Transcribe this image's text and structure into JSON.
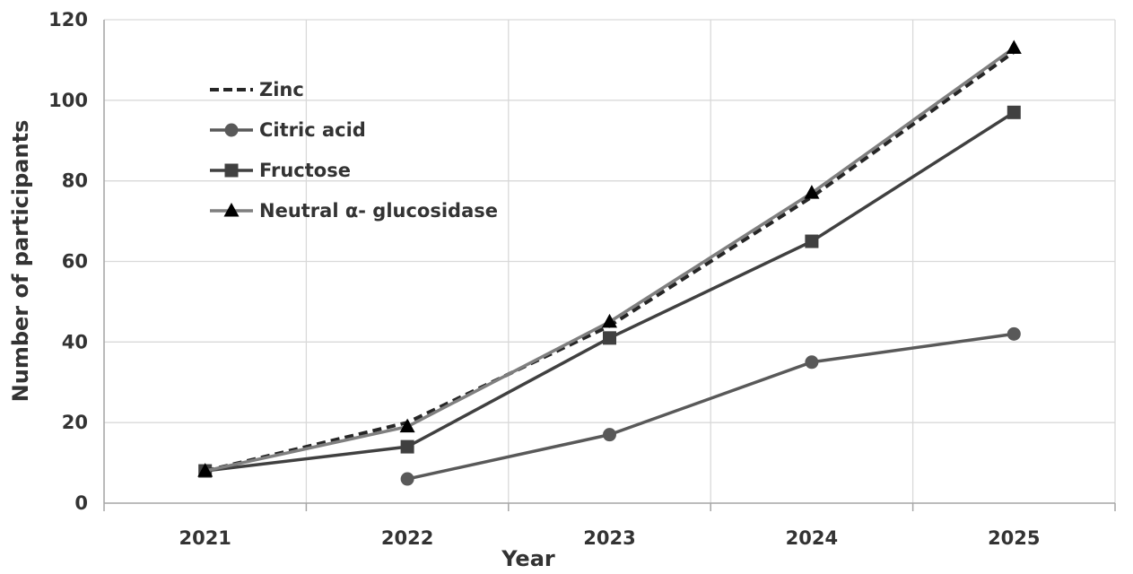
{
  "chart_data": {
    "type": "line",
    "title": "",
    "xlabel": "Year",
    "ylabel": "Number of participants",
    "categories": [
      "2021",
      "2022",
      "2023",
      "2024",
      "2025"
    ],
    "ylim": [
      0,
      120
    ],
    "yticks": [
      0,
      20,
      40,
      60,
      80,
      100,
      120
    ],
    "grid": true,
    "legend_position": "top-left",
    "series": [
      {
        "name": "Zinc",
        "values": [
          8,
          20,
          44,
          76,
          112
        ],
        "color": "#262626",
        "line_style": "dashed",
        "marker": "none"
      },
      {
        "name": "Citric acid",
        "values": [
          null,
          6,
          17,
          35,
          42
        ],
        "color": "#595959",
        "line_style": "solid",
        "marker": "circle"
      },
      {
        "name": "Fructose",
        "values": [
          8,
          14,
          41,
          65,
          97
        ],
        "color": "#404040",
        "line_style": "solid",
        "marker": "square"
      },
      {
        "name": "Neutral α- glucosidase",
        "values": [
          8,
          19,
          45,
          77,
          113
        ],
        "color": "#7f7f7f",
        "line_style": "solid",
        "marker": "triangle"
      }
    ]
  }
}
